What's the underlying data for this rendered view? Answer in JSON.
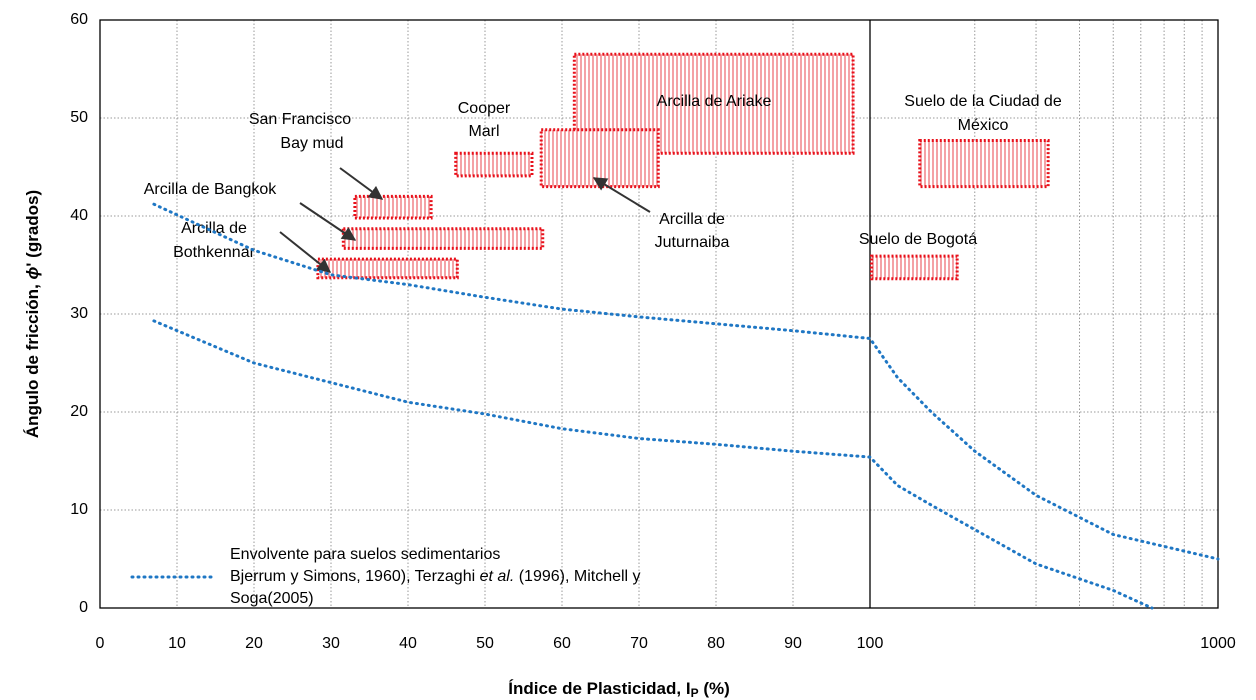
{
  "chart_data": {
    "type": "line",
    "xlabel": [
      "Índice de Plasticidad, I",
      "P",
      " (%)"
    ],
    "ylabel": [
      "Ángulo de fricción, ",
      "ϕ",
      "' (grados)"
    ],
    "xscale": "linear-log",
    "xbreak": 100,
    "xlim": [
      0,
      1000
    ],
    "ylim": [
      0,
      60
    ],
    "xticks": [
      0,
      10,
      20,
      30,
      40,
      50,
      60,
      70,
      80,
      90,
      100,
      1000
    ],
    "xgrid_minor": [
      200,
      300,
      400,
      500,
      600,
      700,
      800,
      900
    ],
    "yticks": [
      0,
      10,
      20,
      30,
      40,
      50,
      60
    ],
    "grid": true,
    "series": [
      {
        "color": "#1f77c4",
        "x": [
          7,
          20,
          30,
          40,
          50,
          60,
          70,
          80,
          90,
          100,
          120,
          150,
          200,
          300,
          500,
          1000
        ],
        "values": [
          41.2,
          36.5,
          34,
          33,
          31.7,
          30.5,
          29.7,
          29,
          28.3,
          27.5,
          23.5,
          20,
          16,
          11.5,
          7.5,
          5
        ]
      },
      {
        "color": "#1f77c4",
        "x": [
          7,
          20,
          30,
          40,
          50,
          60,
          70,
          80,
          90,
          100,
          120,
          150,
          200,
          300,
          500,
          646
        ],
        "values": [
          29.3,
          25,
          23,
          21,
          19.8,
          18.3,
          17.3,
          16.7,
          16,
          15.4,
          12.5,
          10.5,
          8,
          4.5,
          1.8,
          0
        ]
      }
    ],
    "legend": [
      "Envolvente para suelos sedimentarios",
      [
        "Bjerrum y Simons, 1960), Terzaghi ",
        "et al.",
        " (1996), Mitchell y"
      ],
      "Soga(2005)"
    ],
    "region_color": "#e8101a",
    "regions": [
      {
        "label": [
          "Arcilla de Ariake"
        ],
        "x": [
          61.6,
          97.8
        ],
        "y": [
          46.4,
          56.5
        ]
      },
      {
        "label": [
          "Arcilla de",
          "Juturnaiba"
        ],
        "x": [
          57.3,
          72.5
        ],
        "y": [
          43,
          48.8
        ]
      },
      {
        "label": [
          "Cooper",
          "Marl"
        ],
        "x": [
          46.2,
          56.1
        ],
        "y": [
          44.1,
          46.4
        ]
      },
      {
        "label": [
          "San Francisco",
          "Bay mud"
        ],
        "x": [
          33.1,
          43
        ],
        "y": [
          39.8,
          42
        ]
      },
      {
        "label": [
          "Arcilla de Bangkok"
        ],
        "x": [
          31.6,
          57.5
        ],
        "y": [
          36.7,
          38.7
        ]
      },
      {
        "label": [
          "Arcilla de",
          "Bothkennar"
        ],
        "x": [
          28.3,
          46.4
        ],
        "y": [
          33.7,
          35.6
        ]
      },
      {
        "label": [
          "Suelo de la Ciudad de",
          "México"
        ],
        "x": [
          139,
          325
        ],
        "y": [
          43,
          47.7
        ]
      },
      {
        "label": [
          "Suelo de Bogotá"
        ],
        "x": [
          101,
          178
        ],
        "y": [
          33.6,
          35.9
        ]
      }
    ]
  }
}
